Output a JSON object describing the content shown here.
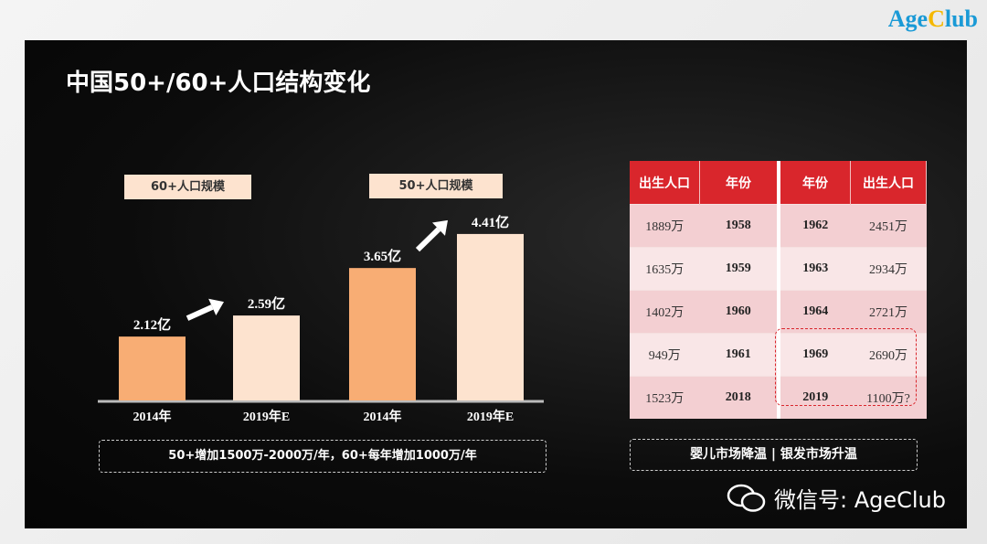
{
  "logo": {
    "part1": "Age",
    "part2": "C",
    "part3": "lub"
  },
  "title": "中国50+/60+人口结构变化",
  "chart_data": {
    "type": "bar",
    "groups": [
      {
        "label": "60+人口规模",
        "categories": [
          "2014年",
          "2019年E"
        ],
        "values": [
          2.12,
          2.59
        ],
        "value_labels": [
          "2.12亿",
          "2.59亿"
        ]
      },
      {
        "label": "50+人口规模",
        "categories": [
          "2014年",
          "2019年E"
        ],
        "values": [
          3.65,
          4.41
        ],
        "value_labels": [
          "3.65亿",
          "4.41亿"
        ]
      }
    ],
    "unit": "亿",
    "colors": [
      "#f8ad74",
      "#fde3cf"
    ],
    "annotation": "50+增加1500万-2000万/年，60+每年增加1000万/年"
  },
  "table": {
    "headers": [
      "出生人口",
      "年份",
      "年份",
      "出生人口"
    ],
    "rows": [
      [
        "1889万",
        "1958",
        "1962",
        "2451万"
      ],
      [
        "1635万",
        "1959",
        "1963",
        "2934万"
      ],
      [
        "1402万",
        "1960",
        "1964",
        "2721万"
      ],
      [
        "949万",
        "1961",
        "1969",
        "2690万"
      ],
      [
        "1523万",
        "2018",
        "2019",
        "1100万?"
      ]
    ],
    "caption": "婴儿市场降温 | 银发市场升温",
    "accent": "#d9262c"
  },
  "watermark": "微信号: AgeClub"
}
